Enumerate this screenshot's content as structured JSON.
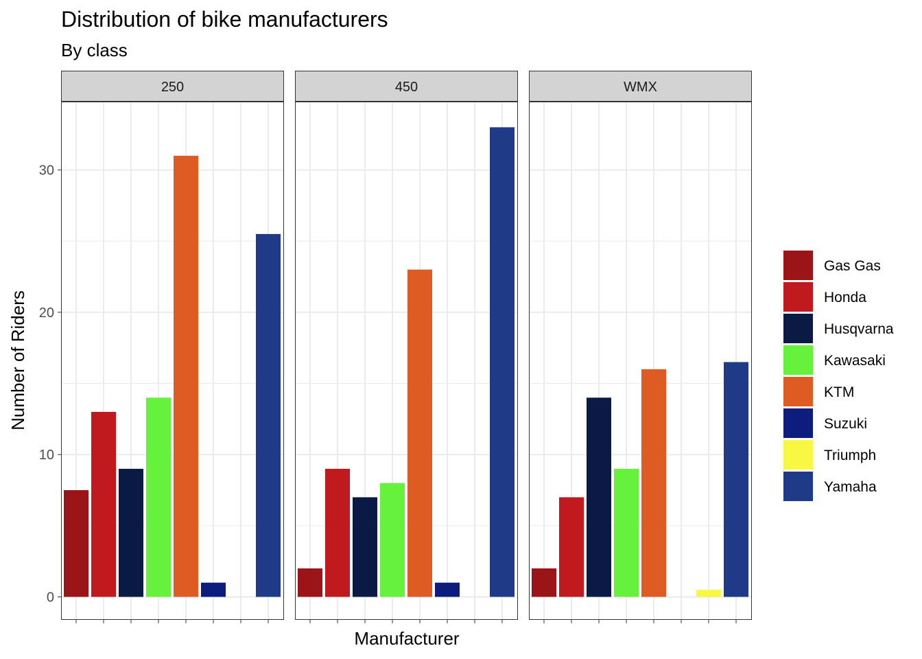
{
  "chart_data": {
    "type": "bar",
    "title": "Distribution of bike manufacturers",
    "subtitle": "By class",
    "xlabel": "Manufacturer",
    "ylabel": "Number of Riders",
    "ylim": [
      -1.5,
      35
    ],
    "yticks": [
      0,
      10,
      20,
      30
    ],
    "grid": true,
    "legend_position": "right",
    "categories": [
      "Gas Gas",
      "Honda",
      "Husqvarna",
      "Kawasaki",
      "KTM",
      "Suzuki",
      "Triumph",
      "Yamaha"
    ],
    "colors": {
      "Gas Gas": "#9a1418",
      "Honda": "#c0191e",
      "Husqvarna": "#0b1a44",
      "Kawasaki": "#66f23c",
      "KTM": "#de5b24",
      "Suzuki": "#0d1d7e",
      "Triumph": "#f8f842",
      "Yamaha": "#1f3a86"
    },
    "facets": [
      {
        "label": "250",
        "values": [
          7.5,
          13,
          9,
          14,
          31,
          1,
          0,
          25.5
        ]
      },
      {
        "label": "450",
        "values": [
          2,
          9,
          7,
          8,
          23,
          1,
          0,
          33
        ]
      },
      {
        "label": "WMX",
        "values": [
          2,
          7,
          14,
          9,
          16,
          0,
          0.5,
          16.5
        ]
      }
    ]
  }
}
